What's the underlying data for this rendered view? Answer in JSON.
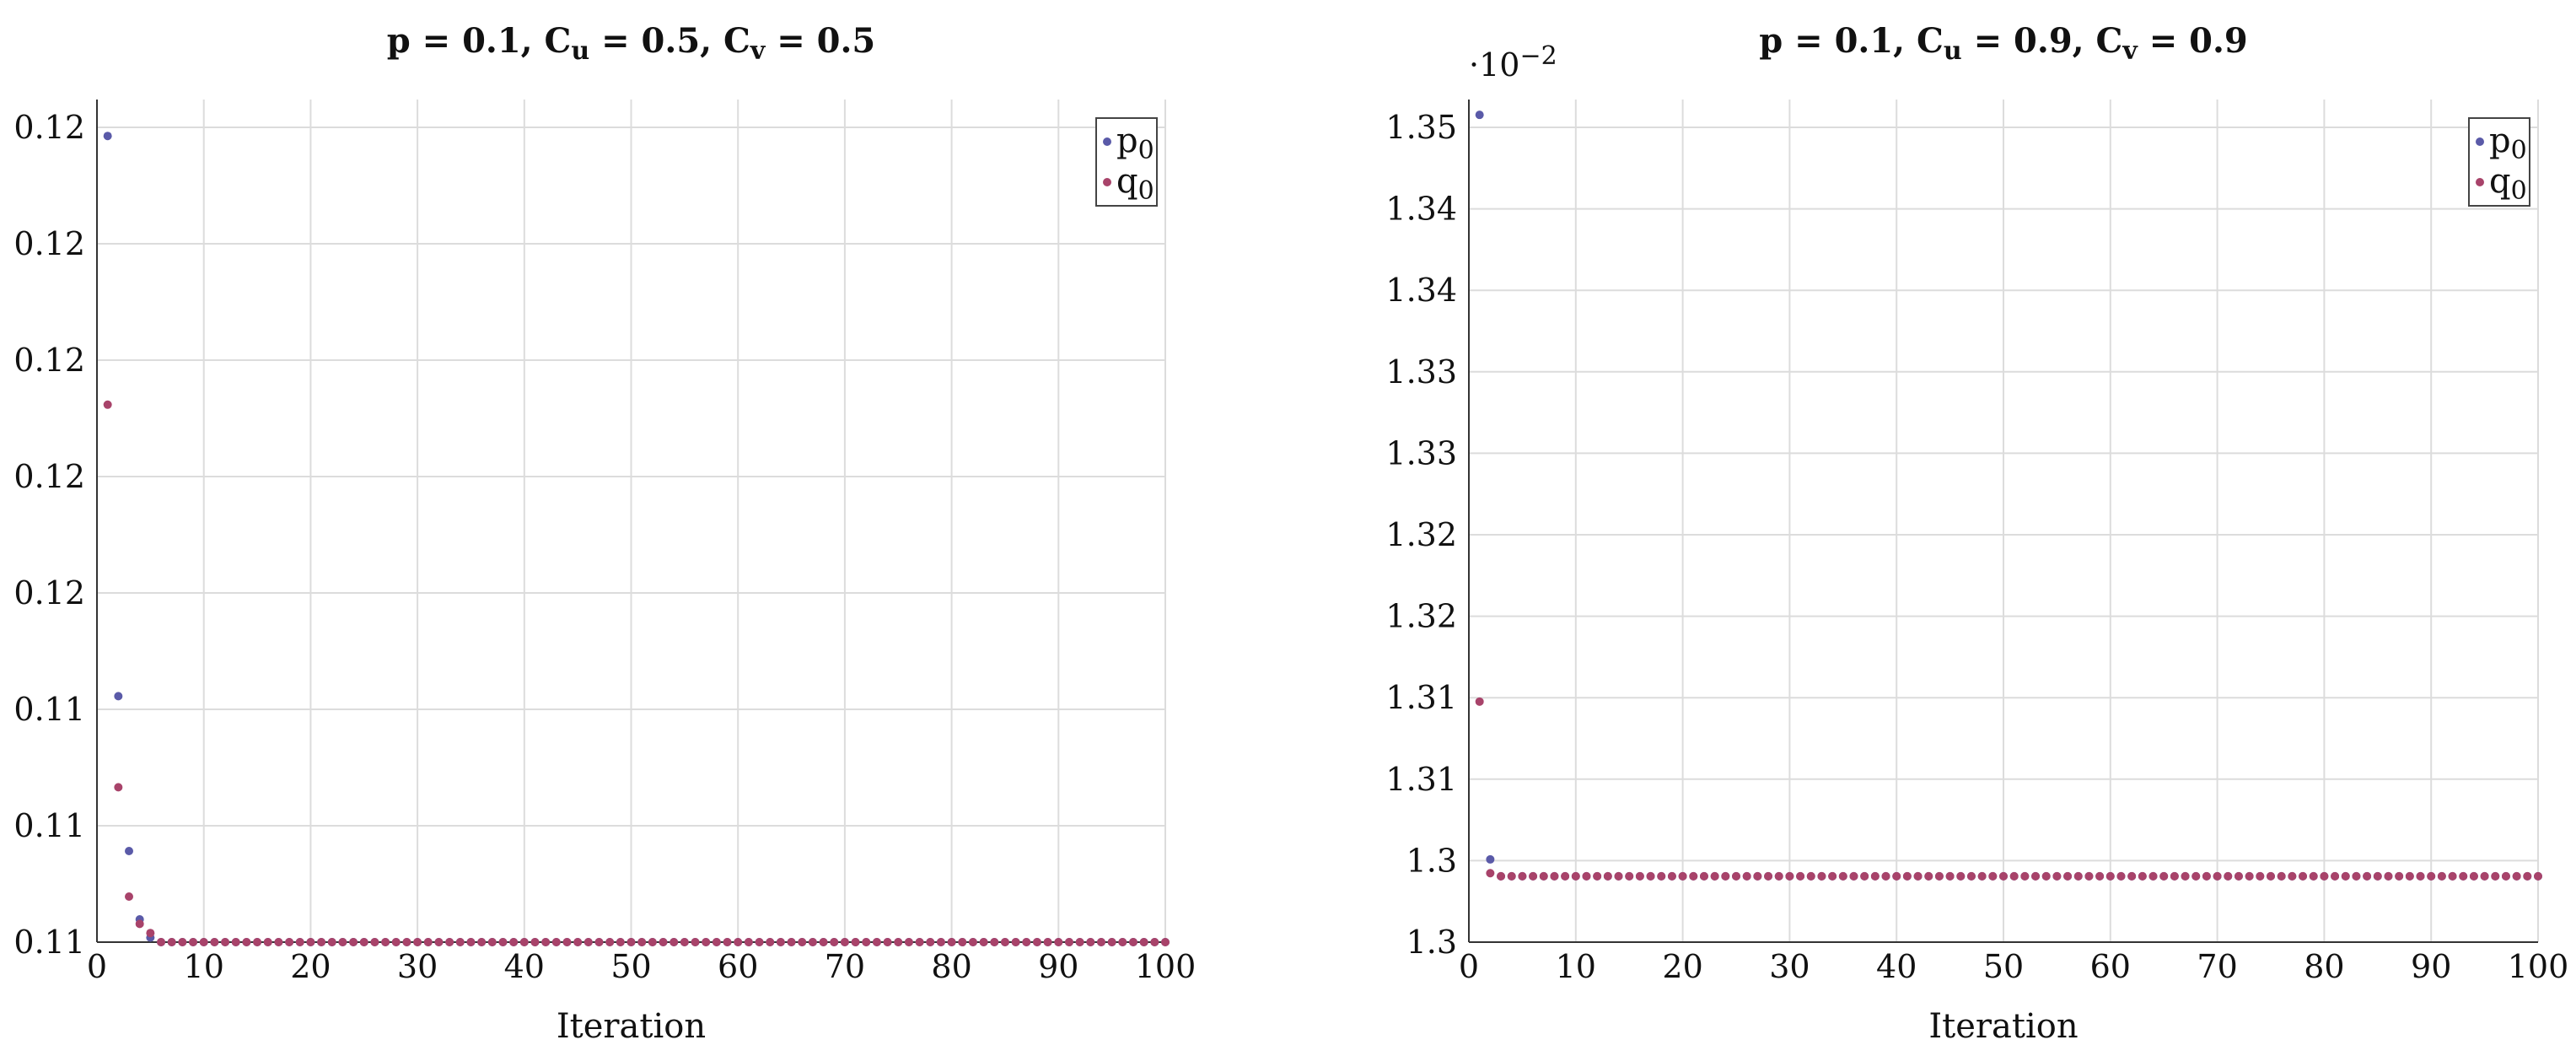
{
  "colors": {
    "p0": "#5a5aa8",
    "q0": "#a8436a",
    "grid": "#dcdcdc",
    "axis": "#333333",
    "legendBorder": "#444444"
  },
  "chart_data": [
    {
      "type": "scatter",
      "title_parts": [
        {
          "t": "p = 0.1, C"
        },
        {
          "t": "u",
          "sub": true
        },
        {
          "t": " = 0.5, C"
        },
        {
          "t": "v",
          "sub": true
        },
        {
          "t": " = 0.5"
        }
      ],
      "xlabel": "Iteration",
      "xlim": [
        0,
        100
      ],
      "x_ticks": [
        0,
        10,
        20,
        30,
        40,
        50,
        60,
        70,
        80,
        90,
        100
      ],
      "y_tick_labels": [
        "0.11",
        "0.11",
        "0.11",
        "0.12",
        "0.12",
        "0.12",
        "0.12",
        "0.12"
      ],
      "y_exponent": "",
      "legend": [
        {
          "key": "p0",
          "base": "p",
          "sub": "0"
        },
        {
          "key": "q0",
          "base": "q",
          "sub": "0"
        }
      ],
      "legend_position": "top-right",
      "grid": true,
      "series": [
        {
          "key": "p0",
          "head": [
            [
              1,
              0.1247
            ],
            [
              2,
              0.1124
            ],
            [
              3,
              0.109
            ],
            [
              4,
              0.1075
            ],
            [
              5,
              0.1071
            ]
          ],
          "tail_start": 6,
          "tail_end": 100,
          "tail_value": 0.107
        },
        {
          "key": "q0",
          "head": [
            [
              1,
              0.1188
            ],
            [
              2,
              0.1104
            ],
            [
              3,
              0.108
            ],
            [
              4,
              0.1074
            ],
            [
              5,
              0.1072
            ]
          ],
          "tail_start": 6,
          "tail_end": 100,
          "tail_value": 0.107
        }
      ],
      "ylim_internal": [
        0.107,
        0.1255
      ]
    },
    {
      "type": "scatter",
      "title_parts": [
        {
          "t": "p = 0.1, C"
        },
        {
          "t": "u",
          "sub": true
        },
        {
          "t": " = 0.9, C"
        },
        {
          "t": "v",
          "sub": true
        },
        {
          "t": " = 0.9"
        }
      ],
      "xlabel": "Iteration",
      "xlim": [
        0,
        100
      ],
      "x_ticks": [
        0,
        10,
        20,
        30,
        40,
        50,
        60,
        70,
        80,
        90,
        100
      ],
      "y_tick_labels": [
        "1.3",
        "1.3",
        "1.31",
        "1.31",
        "1.32",
        "1.32",
        "1.33",
        "1.33",
        "1.34",
        "1.34",
        "1.35"
      ],
      "y_exponent": "−2",
      "legend": [
        {
          "key": "p0",
          "base": "p",
          "sub": "0"
        },
        {
          "key": "q0",
          "base": "q",
          "sub": "0"
        }
      ],
      "legend_position": "top-right",
      "grid": true,
      "series": [
        {
          "key": "p0",
          "head": [
            [
              1,
              1.349
            ],
            [
              2,
              1.3004
            ]
          ],
          "tail_start": 3,
          "tail_end": 100,
          "tail_value": 1.2993
        },
        {
          "key": "q0",
          "head": [
            [
              1,
              1.3107
            ],
            [
              2,
              1.2995
            ]
          ],
          "tail_start": 3,
          "tail_end": 100,
          "tail_value": 1.2993
        }
      ],
      "ylim_internal": [
        1.295,
        1.35
      ]
    }
  ]
}
